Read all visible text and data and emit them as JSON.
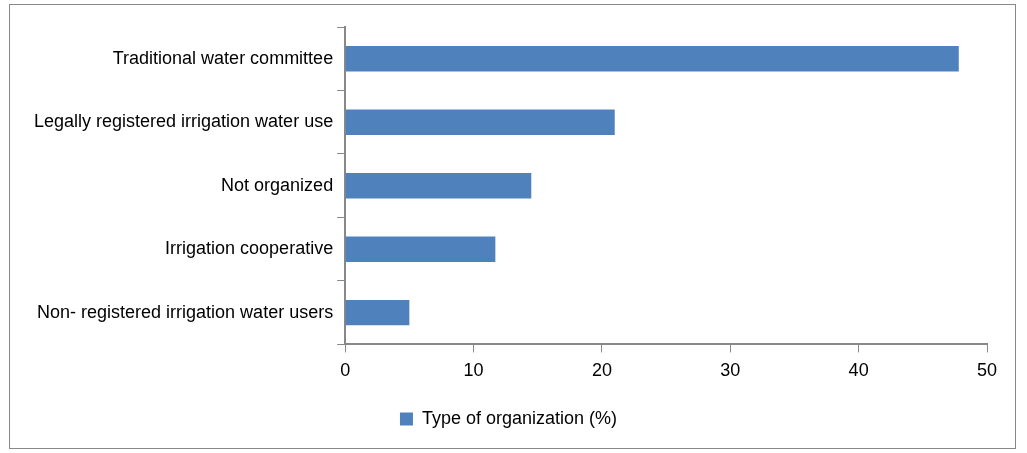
{
  "chart_data": {
    "type": "bar",
    "orientation": "horizontal",
    "categories": [
      "Traditional water committee",
      "Legally registered irrigation water use",
      "Not organized",
      "Irrigation cooperative",
      "Non- registered irrigation water users"
    ],
    "series": [
      {
        "name": "Type of organization (%)",
        "color": "#4f81bd",
        "values": [
          47.8,
          21.0,
          14.5,
          11.7,
          5.0
        ]
      }
    ],
    "xlim": [
      0,
      50
    ],
    "xticks": [
      0,
      10,
      20,
      30,
      40,
      50
    ],
    "grid": false,
    "legend": "bottom"
  }
}
